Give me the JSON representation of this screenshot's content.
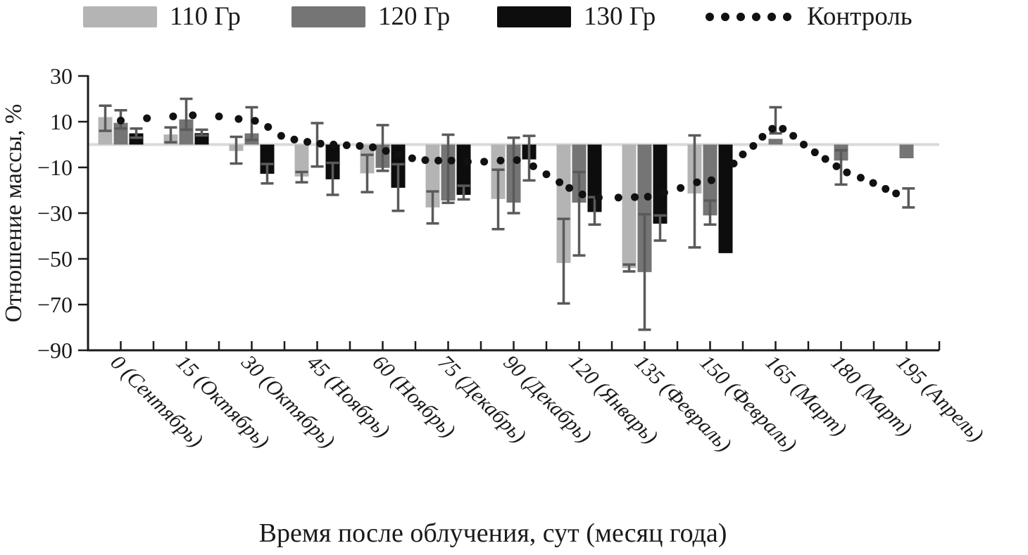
{
  "legend": {
    "items": [
      {
        "label": "110 Гр",
        "swatch": "rect",
        "color": "#b4b4b4"
      },
      {
        "label": "120 Гр",
        "swatch": "rect",
        "color": "#757575"
      },
      {
        "label": "130 Гр",
        "swatch": "rect",
        "color": "#0d0d0d"
      },
      {
        "label": "Контроль",
        "swatch": "dotted-line",
        "color": "#111111"
      }
    ]
  },
  "chart_data": {
    "type": "bar",
    "title": "",
    "xlabel": "Время после облучения, сут (месяц года)",
    "ylabel": "Отношение массы, %",
    "ylim": [
      -90,
      30
    ],
    "yticks": [
      30,
      10,
      -10,
      -30,
      -50,
      -70,
      -90
    ],
    "grid": "zero-line-only",
    "legend_position": "top",
    "categories": [
      "0 (Сентябрь)",
      "15 (Октябрь)",
      "30 (Октябрь)",
      "45 (Ноябрь)",
      "60 (Ноябрь)",
      "75 (Декабрь)",
      "90 (Декабрь)",
      "120 (Январь)",
      "135 (Февраль)",
      "150 (Февраль)",
      "165 (Март)",
      "180 (Март)",
      "195 (Апрель)"
    ],
    "series": [
      {
        "name": "110 Гр",
        "color": "#b4b4b4",
        "values": [
          12,
          4.4,
          -2.8,
          -14,
          -12.6,
          -27.5,
          -23.8,
          -51.8,
          -54,
          -21.4,
          null,
          null,
          null
        ],
        "errors": [
          [
            6,
            17
          ],
          [
            1,
            7.5
          ],
          [
            -8.3,
            3.4
          ],
          [
            -16.5,
            -12
          ],
          [
            -20.8,
            -4.5
          ],
          [
            -34.5,
            -20.5
          ],
          [
            -37,
            -11
          ],
          [
            -69.5,
            -32.5
          ],
          [
            -55.5,
            -52.5
          ],
          [
            -45,
            4
          ],
          null,
          null,
          null
        ]
      },
      {
        "name": "120 Гр",
        "color": "#757575",
        "values": [
          9.5,
          11,
          4.9,
          0,
          -10.2,
          -24.5,
          -25.4,
          -25.4,
          -55.8,
          -31,
          2.5,
          -7,
          -6
        ],
        "errors": [
          [
            7,
            15
          ],
          [
            6.5,
            20
          ],
          [
            2,
            16.3
          ],
          [
            -9.6,
            9.4
          ],
          [
            -11.5,
            8.5
          ],
          [
            -25.5,
            4.3
          ],
          [
            -30,
            3
          ],
          [
            -48.5,
            -12
          ],
          [
            -81,
            -30.5
          ],
          [
            -35,
            -24.5
          ],
          [
            4.9,
            16.3
          ],
          [
            -17.5,
            -2.5
          ],
          null
        ]
      },
      {
        "name": "130 Гр",
        "color": "#0d0d0d",
        "values": [
          4.9,
          5,
          -12.8,
          -15.2,
          -18.9,
          -22,
          -6.5,
          -29.5,
          -34.6,
          -47.5,
          null,
          null,
          null
        ],
        "errors": [
          [
            3,
            7
          ],
          [
            4,
            6.5
          ],
          [
            -17,
            -8.5
          ],
          [
            -22,
            -8
          ],
          [
            -29,
            -8.6
          ],
          [
            -24,
            -18
          ],
          [
            -15.7,
            3.8
          ],
          [
            -35,
            -23
          ],
          [
            -42,
            -31
          ],
          null,
          null,
          null,
          null
        ]
      }
    ],
    "control": {
      "name": "Контроль",
      "style": "dotted",
      "color": "#111111",
      "points": [
        [
          0,
          10.5
        ],
        [
          0.4,
          11.5
        ],
        [
          0.8,
          12.3
        ],
        [
          1.1,
          12.8
        ],
        [
          1.5,
          12.3
        ],
        [
          1.8,
          11.2
        ],
        [
          2.05,
          10.4
        ],
        [
          2.25,
          7.7
        ],
        [
          2.45,
          3.8
        ],
        [
          2.65,
          2.2
        ],
        [
          2.85,
          1.2
        ],
        [
          3.05,
          0.4
        ],
        [
          3.25,
          0
        ],
        [
          3.45,
          -0.3
        ],
        [
          3.65,
          -0.6
        ],
        [
          3.85,
          -1.2
        ],
        [
          4.05,
          -2.8
        ],
        [
          4.25,
          -4.5
        ],
        [
          4.45,
          -6
        ],
        [
          4.65,
          -6.8
        ],
        [
          4.85,
          -7
        ],
        [
          5.05,
          -7
        ],
        [
          5.3,
          -7.5
        ],
        [
          5.55,
          -7.5
        ],
        [
          5.8,
          -7
        ],
        [
          6.05,
          -6.8
        ],
        [
          6.3,
          -9.5
        ],
        [
          6.5,
          -13
        ],
        [
          6.7,
          -16.5
        ],
        [
          6.85,
          -19
        ],
        [
          7.05,
          -21.8
        ],
        [
          7.3,
          -23.2
        ],
        [
          7.6,
          -23.2
        ],
        [
          7.85,
          -23
        ],
        [
          8.05,
          -22.8
        ],
        [
          8.3,
          -21
        ],
        [
          8.55,
          -19
        ],
        [
          8.8,
          -16.5
        ],
        [
          9.02,
          -15.6
        ],
        [
          9.36,
          -8.3
        ],
        [
          9.5,
          -4.3
        ],
        [
          9.66,
          -0.6
        ],
        [
          9.8,
          3.4
        ],
        [
          9.95,
          6.9
        ],
        [
          10.11,
          6.9
        ],
        [
          10.27,
          3.8
        ],
        [
          10.43,
          0
        ],
        [
          10.6,
          -3.4
        ],
        [
          10.76,
          -6.3
        ],
        [
          10.93,
          -9.5
        ],
        [
          11.09,
          -12.2
        ],
        [
          11.3,
          -14.5
        ],
        [
          11.49,
          -16.8
        ],
        [
          11.68,
          -19.4
        ],
        [
          11.84,
          -21.4
        ]
      ],
      "end_error": {
        "x": 12.03,
        "lo": -27.5,
        "hi": -19.2
      }
    }
  }
}
